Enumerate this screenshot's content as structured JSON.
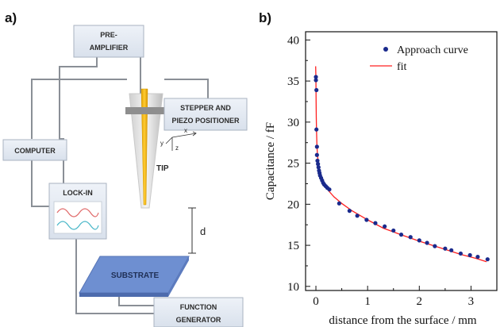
{
  "panels": {
    "a": "a)",
    "b": "b)"
  },
  "schematic": {
    "boxes": {
      "preamp": [
        "PRE-",
        "AMPLIFIER"
      ],
      "stepper": [
        "STEPPER AND",
        "PIEZO POSITIONER"
      ],
      "computer": "COMPUTER",
      "lockin": "LOCK-IN",
      "substrate": "SUBSTRATE",
      "function_gen": [
        "FUNCTION",
        "GENERATOR"
      ]
    },
    "tip_label": "TIP",
    "distance_label": "d",
    "axes": {
      "x": "x",
      "y": "y",
      "z": "z"
    }
  },
  "chart_data": {
    "type": "scatter",
    "xlabel": "distance from the surface / mm",
    "ylabel": "Capacitance / fF",
    "xlim": [
      -0.2,
      3.5
    ],
    "ylim": [
      9.5,
      41
    ],
    "xticks": [
      0,
      1,
      2,
      3
    ],
    "yticks": [
      10,
      15,
      20,
      25,
      30,
      35,
      40
    ],
    "legend_position": "top-right",
    "series": [
      {
        "name": "Approach curve",
        "kind": "points",
        "color": "#1a2a8c",
        "x": [
          0.0,
          0.0,
          0.01,
          0.01,
          0.02,
          0.02,
          0.03,
          0.04,
          0.05,
          0.06,
          0.07,
          0.08,
          0.1,
          0.12,
          0.14,
          0.16,
          0.19,
          0.22,
          0.26,
          0.45,
          0.65,
          0.8,
          0.98,
          1.15,
          1.33,
          1.5,
          1.65,
          1.83,
          2.0,
          2.15,
          2.3,
          2.5,
          2.62,
          2.8,
          2.98,
          3.13,
          3.32
        ],
        "y": [
          35.5,
          35.1,
          33.9,
          29.1,
          27.0,
          26.0,
          25.3,
          24.9,
          24.5,
          24.1,
          23.8,
          23.5,
          23.2,
          22.9,
          22.6,
          22.4,
          22.2,
          22.0,
          21.8,
          20.1,
          19.2,
          18.6,
          18.1,
          17.7,
          17.3,
          16.8,
          16.3,
          16.0,
          15.6,
          15.3,
          14.9,
          14.6,
          14.4,
          14.0,
          13.8,
          13.6,
          13.3
        ]
      },
      {
        "name": "fit",
        "kind": "line",
        "color": "#ff2020",
        "x": [
          -0.005,
          0.0,
          0.003,
          0.007,
          0.012,
          0.02,
          0.03,
          0.05,
          0.08,
          0.12,
          0.18,
          0.25,
          0.35,
          0.5,
          0.7,
          1.0,
          1.3,
          1.6,
          2.0,
          2.4,
          2.8,
          3.1,
          3.3
        ],
        "y": [
          36.8,
          35.4,
          33.0,
          30.6,
          28.9,
          27.1,
          26.0,
          24.8,
          23.8,
          23.0,
          22.2,
          21.6,
          20.9,
          20.1,
          19.2,
          18.1,
          17.1,
          16.4,
          15.5,
          14.7,
          13.9,
          13.4,
          13.0
        ]
      }
    ]
  }
}
